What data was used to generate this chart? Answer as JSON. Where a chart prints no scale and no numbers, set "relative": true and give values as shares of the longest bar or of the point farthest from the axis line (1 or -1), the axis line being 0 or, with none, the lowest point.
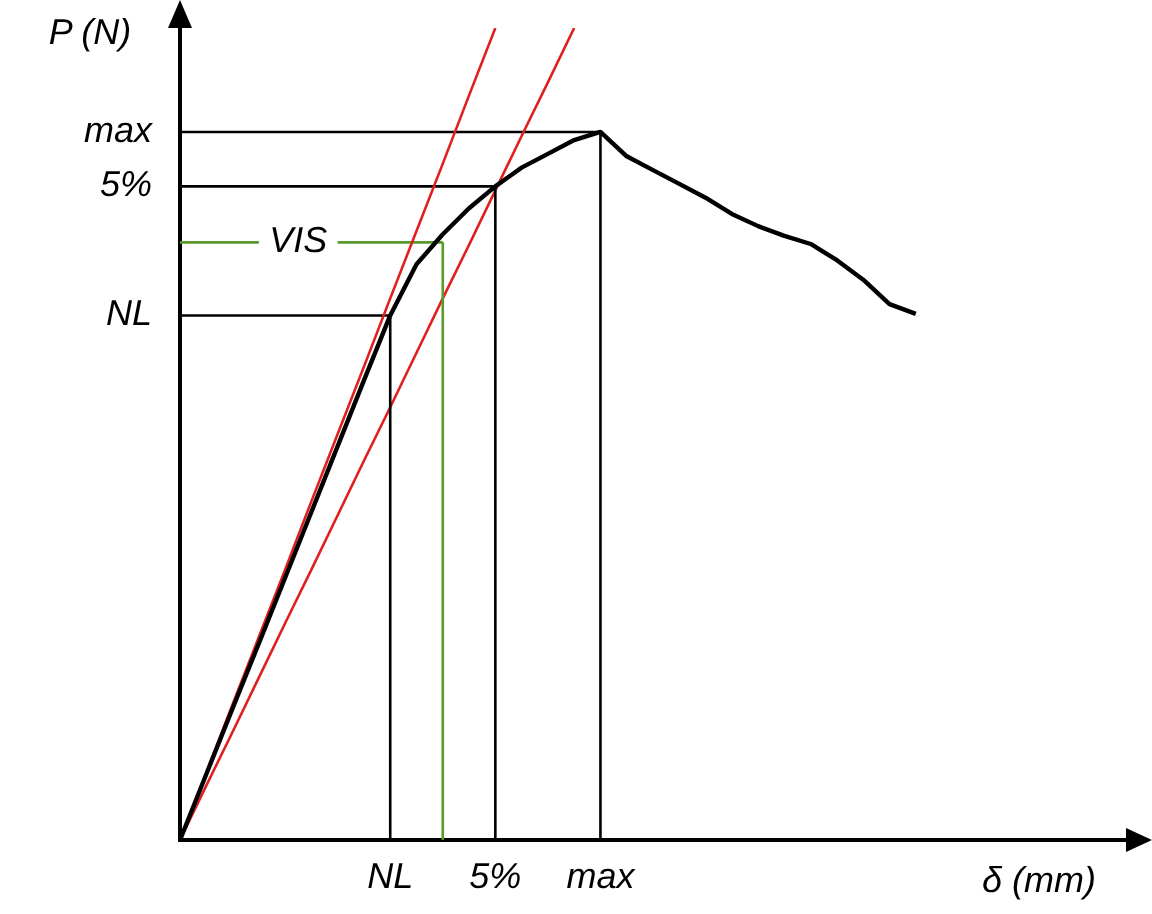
{
  "chart_data": {
    "type": "line",
    "relative": true,
    "xlabel": "δ (mm)",
    "ylabel": "P (N)",
    "categories": [
      null,
      null,
      null,
      null,
      null,
      null,
      null,
      null,
      "NL",
      null,
      null,
      null,
      "5%",
      null,
      null,
      null,
      "max",
      null,
      null,
      null,
      null,
      null,
      null,
      null,
      null,
      null,
      null,
      null,
      null,
      null,
      null,
      null,
      null,
      null,
      null,
      null,
      null
    ],
    "legend": false,
    "marker": "none",
    "line_style": "solid",
    "series": [
      {
        "color": "#000000",
        "values": [
          0,
          0.081,
          0.162,
          0.242,
          0.323,
          0.404,
          0.485,
          0.566,
          0.646,
          0.709,
          0.746,
          0.778,
          0.805,
          0.828,
          0.845,
          0.862,
          0.872,
          0.842,
          0.825,
          0.808,
          0.791,
          0.771,
          0.756,
          0.744,
          0.734,
          0.714,
          0.69,
          0.66,
          0.648,
          null,
          null,
          null,
          null,
          null,
          null,
          null,
          null
        ]
      },
      {
        "color": "#e0201f",
        "values": [
          0,
          0.083,
          0.167,
          0.25,
          0.333,
          0.417,
          0.5,
          0.583,
          0.667,
          0.75,
          0.833,
          0.917,
          1,
          null,
          null,
          null,
          null,
          null,
          null,
          null,
          null,
          null,
          null,
          null,
          null,
          null,
          null,
          null,
          null,
          null,
          null,
          null,
          null,
          null,
          null,
          null,
          null
        ]
      },
      {
        "color": "#e0201f",
        "values": [
          0,
          0.067,
          0.133,
          0.2,
          0.267,
          0.333,
          0.4,
          0.467,
          0.533,
          0.6,
          0.667,
          0.733,
          0.8,
          0.867,
          0.933,
          1,
          null,
          null,
          null,
          null,
          null,
          null,
          null,
          null,
          null,
          null,
          null,
          null,
          null,
          null,
          null,
          null,
          null,
          null,
          null,
          null,
          null
        ]
      },
      {
        "name": "NL",
        "color": "#000000",
        "values": [
          0.646,
          0.646,
          0.646,
          0.646,
          0.646,
          0.646,
          0.646,
          0.646,
          0.646,
          null,
          null,
          null,
          null,
          null,
          null,
          null,
          null,
          null,
          null,
          null,
          null,
          null,
          null,
          null,
          null,
          null,
          null,
          null,
          null,
          null,
          null,
          null,
          null,
          null,
          null,
          null,
          null
        ]
      },
      {
        "name": "5%",
        "color": "#000000",
        "values": [
          0.805,
          0.805,
          0.805,
          0.805,
          0.805,
          0.805,
          0.805,
          0.805,
          0.805,
          0.805,
          0.805,
          0.805,
          0.805,
          null,
          null,
          null,
          null,
          null,
          null,
          null,
          null,
          null,
          null,
          null,
          null,
          null,
          null,
          null,
          null,
          null,
          null,
          null,
          null,
          null,
          null,
          null,
          null
        ]
      },
      {
        "name": "max",
        "color": "#000000",
        "values": [
          0.872,
          0.872,
          0.872,
          0.872,
          0.872,
          0.872,
          0.872,
          0.872,
          0.872,
          0.872,
          0.872,
          0.872,
          0.872,
          0.872,
          0.872,
          0.872,
          0.872,
          null,
          null,
          null,
          null,
          null,
          null,
          null,
          null,
          null,
          null,
          null,
          null,
          null,
          null,
          null,
          null,
          null,
          null,
          null,
          null
        ]
      },
      {
        "name": "VIS",
        "color": "#5a9a2a",
        "values": [
          0.736,
          0.736,
          0.736,
          0.736,
          null,
          null,
          0.736,
          0.736,
          0.736,
          0.736,
          0.736,
          null,
          null,
          null,
          null,
          null,
          null,
          null,
          null,
          null,
          null,
          null,
          null,
          null,
          null,
          null,
          null,
          null,
          null,
          null,
          null,
          null,
          null,
          null,
          null,
          null,
          null
        ]
      }
    ]
  }
}
